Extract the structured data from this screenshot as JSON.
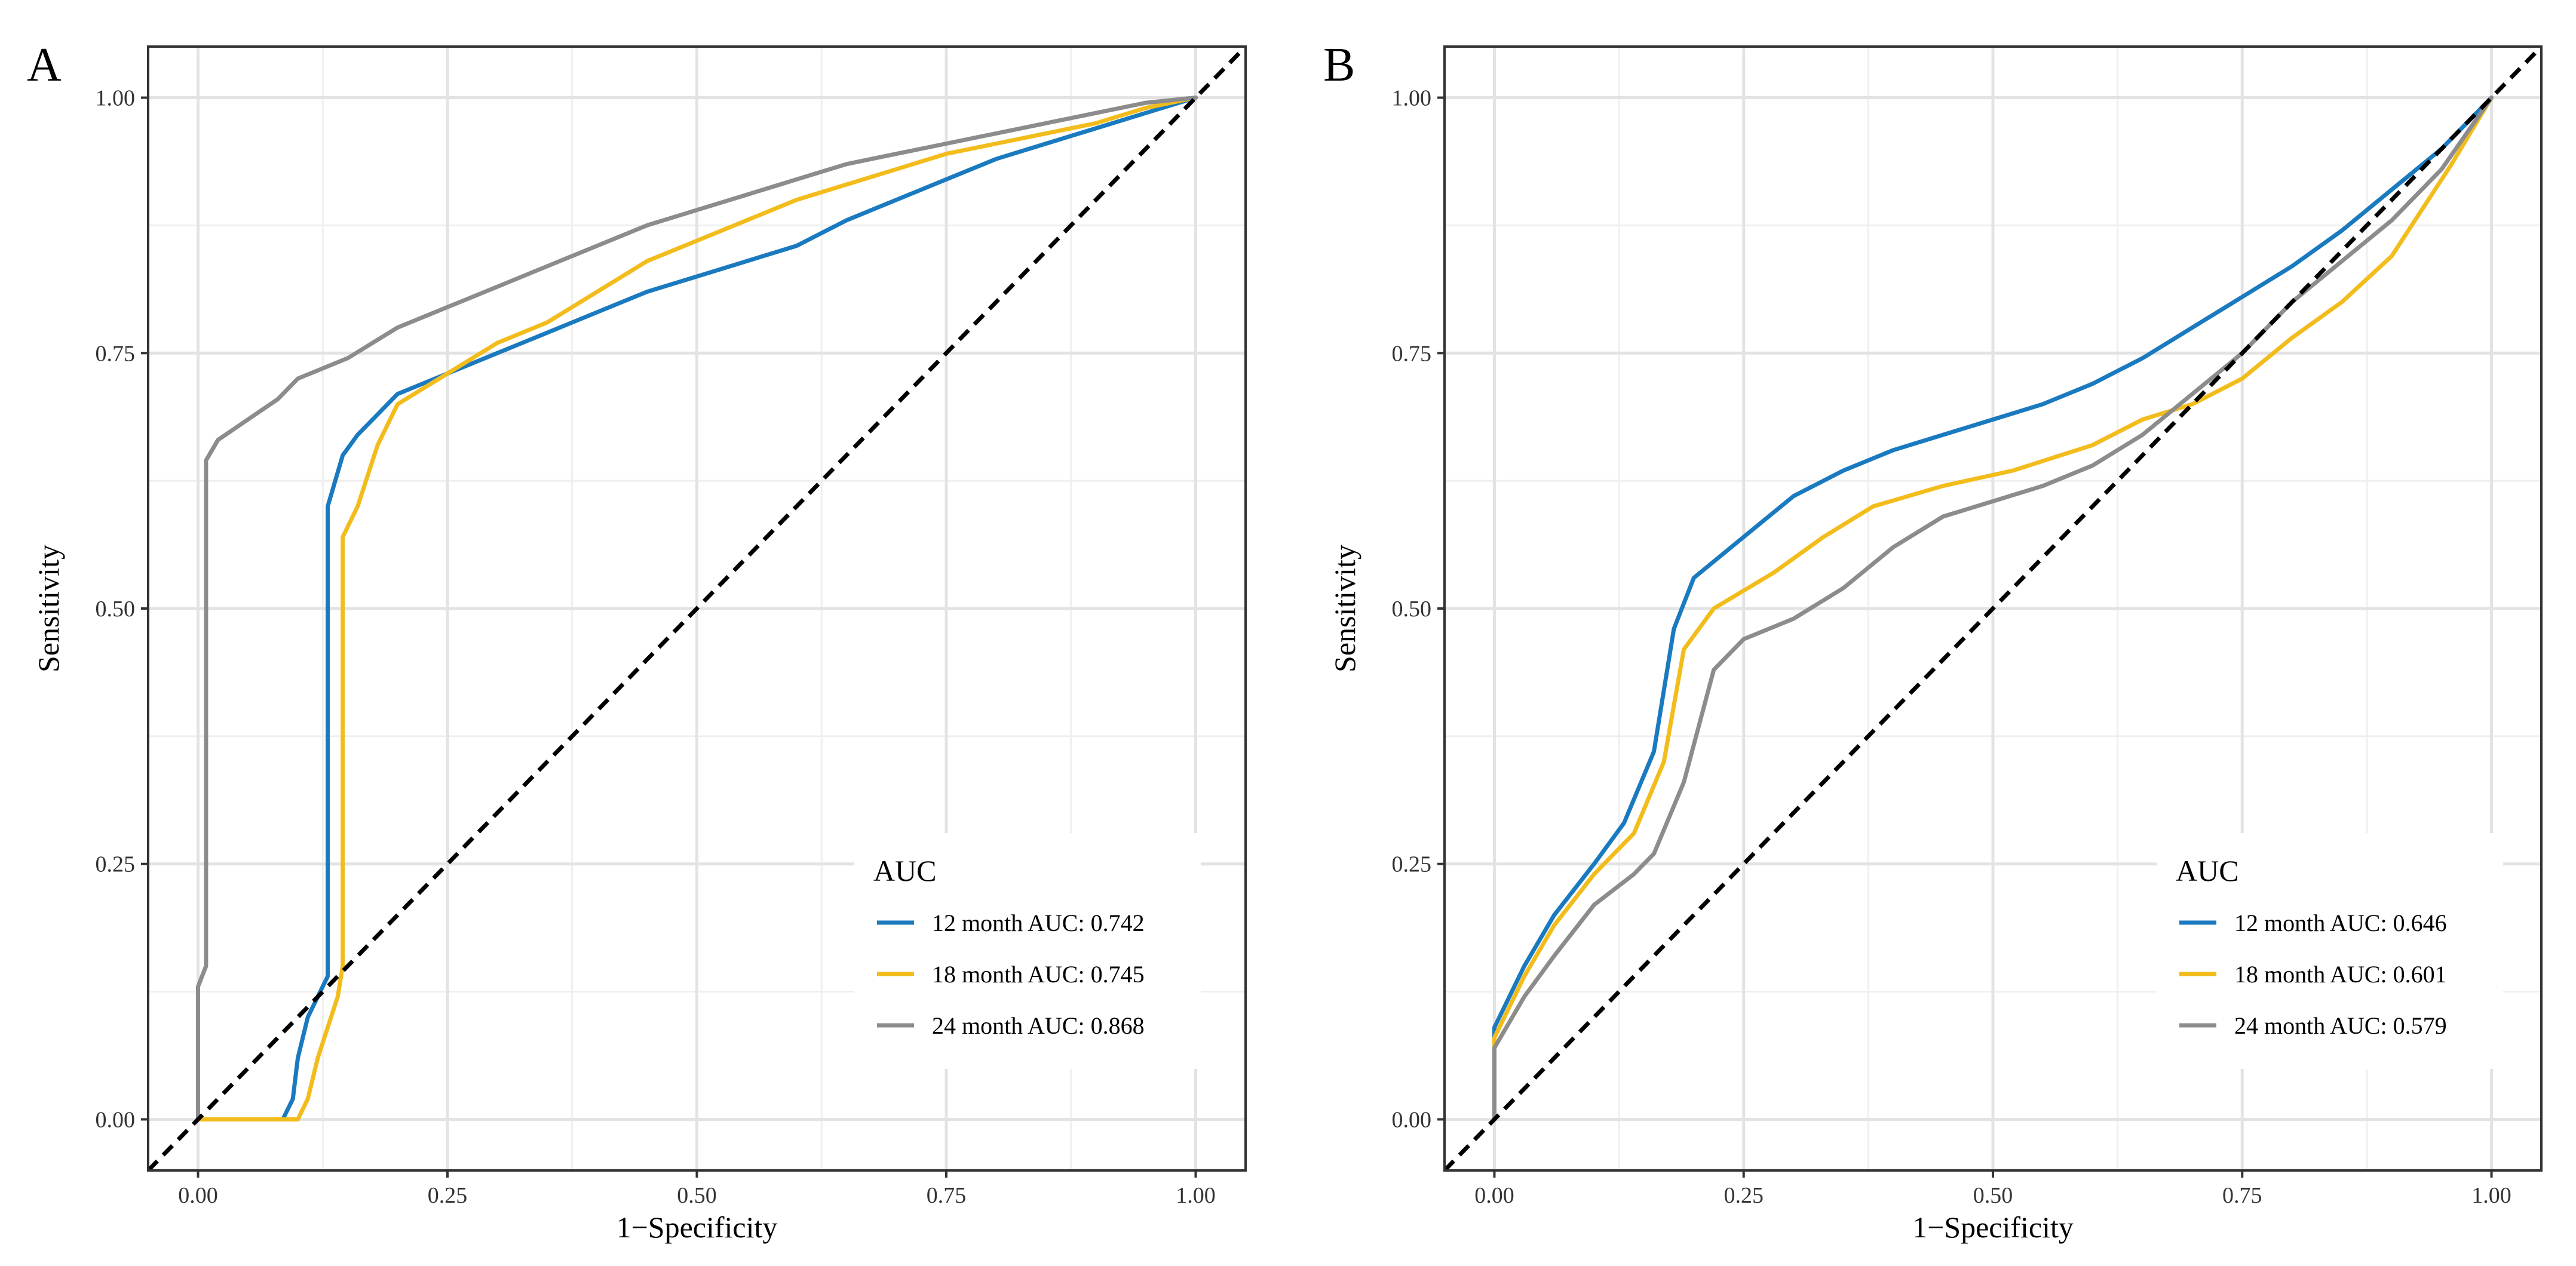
{
  "chart_data": [
    {
      "type": "line",
      "panel": "A",
      "xlabel": "1−Specificity",
      "ylabel": "Sensitivity",
      "xlim": [
        -0.05,
        1.05
      ],
      "ylim": [
        -0.05,
        1.05
      ],
      "xticks": [
        "0.00",
        "0.25",
        "0.50",
        "0.75",
        "1.00"
      ],
      "yticks": [
        "0.00",
        "0.25",
        "0.50",
        "0.75",
        "1.00"
      ],
      "legend_title": "AUC",
      "legend_position": "bottom-right",
      "reference_line": {
        "style": "dashed",
        "color": "#000000",
        "from": [
          -0.05,
          -0.05
        ],
        "to": [
          1.05,
          1.05
        ]
      },
      "series": [
        {
          "name": "12 month AUC: 0.742",
          "color": "#1a7abf",
          "x": [
            0,
            0.085,
            0.095,
            0.1,
            0.11,
            0.13,
            0.13,
            0.145,
            0.16,
            0.18,
            0.2,
            0.25,
            0.3,
            0.35,
            0.4,
            0.45,
            0.5,
            0.55,
            0.6,
            0.65,
            0.7,
            0.75,
            0.8,
            0.85,
            0.9,
            0.95,
            1.0
          ],
          "y": [
            0,
            0,
            0.02,
            0.06,
            0.1,
            0.14,
            0.6,
            0.65,
            0.67,
            0.69,
            0.71,
            0.73,
            0.75,
            0.77,
            0.79,
            0.81,
            0.825,
            0.84,
            0.855,
            0.88,
            0.9,
            0.92,
            0.94,
            0.955,
            0.97,
            0.985,
            1.0
          ]
        },
        {
          "name": "18 month AUC: 0.745",
          "color": "#f2bd1c",
          "x": [
            0,
            0.1,
            0.11,
            0.12,
            0.14,
            0.145,
            0.145,
            0.16,
            0.18,
            0.2,
            0.25,
            0.3,
            0.35,
            0.4,
            0.45,
            0.5,
            0.55,
            0.6,
            0.65,
            0.7,
            0.75,
            0.8,
            0.85,
            0.9,
            0.95,
            1.0
          ],
          "y": [
            0,
            0,
            0.02,
            0.06,
            0.12,
            0.15,
            0.57,
            0.6,
            0.66,
            0.7,
            0.73,
            0.76,
            0.78,
            0.81,
            0.84,
            0.86,
            0.88,
            0.9,
            0.915,
            0.93,
            0.945,
            0.955,
            0.965,
            0.975,
            0.99,
            1.0
          ]
        },
        {
          "name": "24 month AUC: 0.868",
          "color": "#8c8c8c",
          "x": [
            0,
            0,
            0.008,
            0.008,
            0.02,
            0.05,
            0.08,
            0.1,
            0.15,
            0.2,
            0.25,
            0.3,
            0.35,
            0.4,
            0.45,
            0.5,
            0.55,
            0.6,
            0.65,
            0.7,
            0.75,
            0.8,
            0.85,
            0.9,
            0.95,
            1.0
          ],
          "y": [
            0,
            0.13,
            0.15,
            0.645,
            0.665,
            0.685,
            0.705,
            0.725,
            0.745,
            0.775,
            0.795,
            0.815,
            0.835,
            0.855,
            0.875,
            0.89,
            0.905,
            0.92,
            0.935,
            0.945,
            0.955,
            0.965,
            0.975,
            0.985,
            0.995,
            1.0
          ]
        }
      ]
    },
    {
      "type": "line",
      "panel": "B",
      "xlabel": "1−Specificity",
      "ylabel": "Sensitivity",
      "xlim": [
        -0.05,
        1.05
      ],
      "ylim": [
        -0.05,
        1.05
      ],
      "xticks": [
        "0.00",
        "0.25",
        "0.50",
        "0.75",
        "1.00"
      ],
      "yticks": [
        "0.00",
        "0.25",
        "0.50",
        "0.75",
        "1.00"
      ],
      "legend_title": "AUC",
      "legend_position": "bottom-right",
      "reference_line": {
        "style": "dashed",
        "color": "#000000",
        "from": [
          -0.05,
          -0.05
        ],
        "to": [
          1.05,
          1.05
        ]
      },
      "series": [
        {
          "name": "12 month AUC: 0.646",
          "color": "#1a7abf",
          "x": [
            0,
            0,
            0.03,
            0.06,
            0.1,
            0.13,
            0.16,
            0.18,
            0.2,
            0.25,
            0.3,
            0.35,
            0.4,
            0.45,
            0.5,
            0.55,
            0.6,
            0.65,
            0.7,
            0.75,
            0.8,
            0.85,
            0.9,
            0.95,
            1.0
          ],
          "y": [
            0,
            0.09,
            0.15,
            0.2,
            0.25,
            0.29,
            0.36,
            0.48,
            0.53,
            0.57,
            0.61,
            0.635,
            0.655,
            0.67,
            0.685,
            0.7,
            0.72,
            0.745,
            0.775,
            0.805,
            0.835,
            0.87,
            0.91,
            0.95,
            1.0
          ]
        },
        {
          "name": "18 month AUC: 0.601",
          "color": "#f2bd1c",
          "x": [
            0,
            0,
            0.03,
            0.06,
            0.1,
            0.14,
            0.17,
            0.19,
            0.22,
            0.28,
            0.33,
            0.38,
            0.45,
            0.52,
            0.6,
            0.65,
            0.7,
            0.75,
            0.8,
            0.85,
            0.9,
            0.93,
            0.96,
            1.0
          ],
          "y": [
            0,
            0.08,
            0.14,
            0.19,
            0.24,
            0.28,
            0.35,
            0.46,
            0.5,
            0.535,
            0.57,
            0.6,
            0.62,
            0.635,
            0.66,
            0.685,
            0.7,
            0.725,
            0.765,
            0.8,
            0.845,
            0.89,
            0.935,
            1.0
          ]
        },
        {
          "name": "24 month AUC: 0.579",
          "color": "#8c8c8c",
          "x": [
            0,
            0,
            0.03,
            0.06,
            0.1,
            0.14,
            0.16,
            0.19,
            0.22,
            0.25,
            0.3,
            0.35,
            0.4,
            0.45,
            0.5,
            0.55,
            0.6,
            0.65,
            0.7,
            0.75,
            0.8,
            0.85,
            0.9,
            0.95,
            1.0
          ],
          "y": [
            0,
            0.07,
            0.12,
            0.16,
            0.21,
            0.24,
            0.26,
            0.33,
            0.44,
            0.47,
            0.49,
            0.52,
            0.56,
            0.59,
            0.605,
            0.62,
            0.64,
            0.67,
            0.71,
            0.75,
            0.8,
            0.84,
            0.88,
            0.93,
            1.0
          ]
        }
      ]
    }
  ]
}
